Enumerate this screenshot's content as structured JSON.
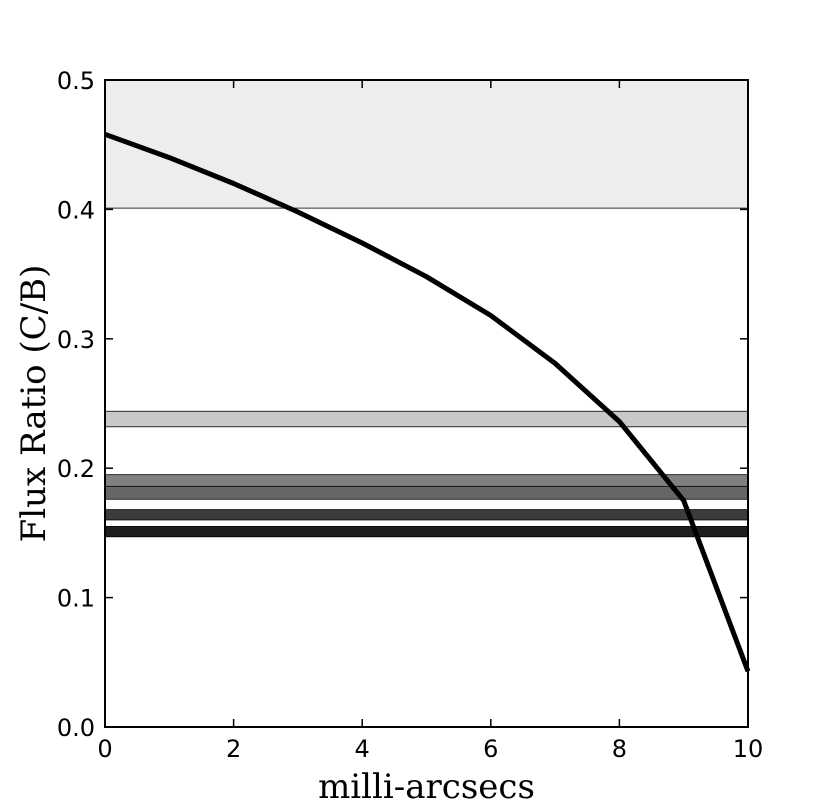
{
  "chart_data": {
    "type": "line",
    "xlabel": "milli-arcsecs",
    "ylabel": "Flux Ratio (C/B)",
    "xlim": [
      0,
      10
    ],
    "ylim": [
      0,
      0.5
    ],
    "xticks": [
      0,
      2,
      4,
      6,
      8,
      10
    ],
    "xtick_labels": [
      "0",
      "2",
      "4",
      "6",
      "8",
      "10"
    ],
    "yticks": [
      0.0,
      0.1,
      0.2,
      0.3,
      0.4,
      0.5
    ],
    "ytick_labels": [
      "0.0",
      "0.1",
      "0.2",
      "0.3",
      "0.4",
      "0.5"
    ],
    "grid": false,
    "bands": [
      {
        "y0": 0.401,
        "y1": 0.5,
        "color": "#ededed"
      },
      {
        "y0": 0.232,
        "y1": 0.244,
        "color": "#c8c8c8"
      },
      {
        "y0": 0.185,
        "y1": 0.195,
        "color": "#808080"
      },
      {
        "y0": 0.176,
        "y1": 0.186,
        "color": "#666666"
      },
      {
        "y0": 0.16,
        "y1": 0.168,
        "color": "#3c3c3c"
      },
      {
        "y0": 0.147,
        "y1": 0.155,
        "color": "#1e1e1e"
      }
    ],
    "series": [
      {
        "color": "#000000",
        "x": [
          0,
          1,
          2,
          3,
          4,
          5,
          6,
          7,
          8,
          9,
          10
        ],
        "y": [
          0.458,
          0.44,
          0.42,
          0.398,
          0.374,
          0.348,
          0.318,
          0.281,
          0.236,
          0.175,
          0.043
        ]
      }
    ]
  }
}
